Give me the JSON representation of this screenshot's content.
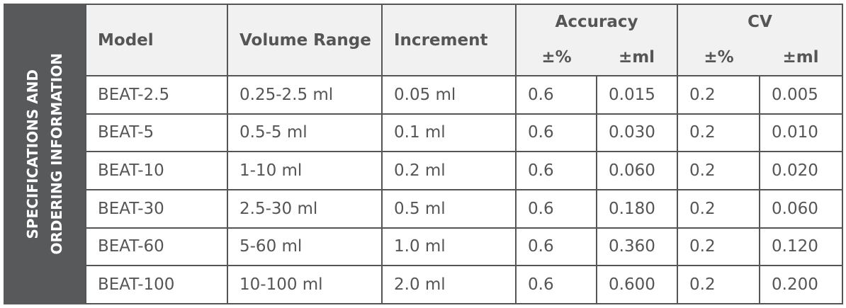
{
  "side_label": [
    "SPECIFICATIONS AND",
    "ORDERING INFORMATION"
  ],
  "header": {
    "model": "Model",
    "volume_range": "Volume Range",
    "increment": "Increment",
    "accuracy": "Accuracy",
    "cv": "CV",
    "accuracy_sub": [
      "±%",
      "±ml"
    ],
    "cv_sub": [
      "±%",
      "±ml"
    ]
  },
  "table": {
    "rows": [
      [
        "BEAT-2.5",
        "0.25-2.5 ml",
        "0.05 ml",
        "0.6",
        "0.015",
        "0.2",
        "0.005"
      ],
      [
        "BEAT-5",
        "0.5-5 ml",
        "0.1 ml",
        "0.6",
        "0.030",
        "0.2",
        "0.010"
      ],
      [
        "BEAT-10",
        "1-10 ml",
        "0.2 ml",
        "0.6",
        "0.060",
        "0.2",
        "0.020"
      ],
      [
        "BEAT-30",
        "2.5-30 ml",
        "0.5 ml",
        "0.6",
        "0.180",
        "0.2",
        "0.060"
      ],
      [
        "BEAT-60",
        "5-60 ml",
        "1.0 ml",
        "0.6",
        "0.360",
        "0.2",
        "0.120"
      ],
      [
        "BEAT-100",
        "10-100 ml",
        "2.0 ml",
        "0.6",
        "0.600",
        "0.2",
        "0.200"
      ]
    ]
  }
}
